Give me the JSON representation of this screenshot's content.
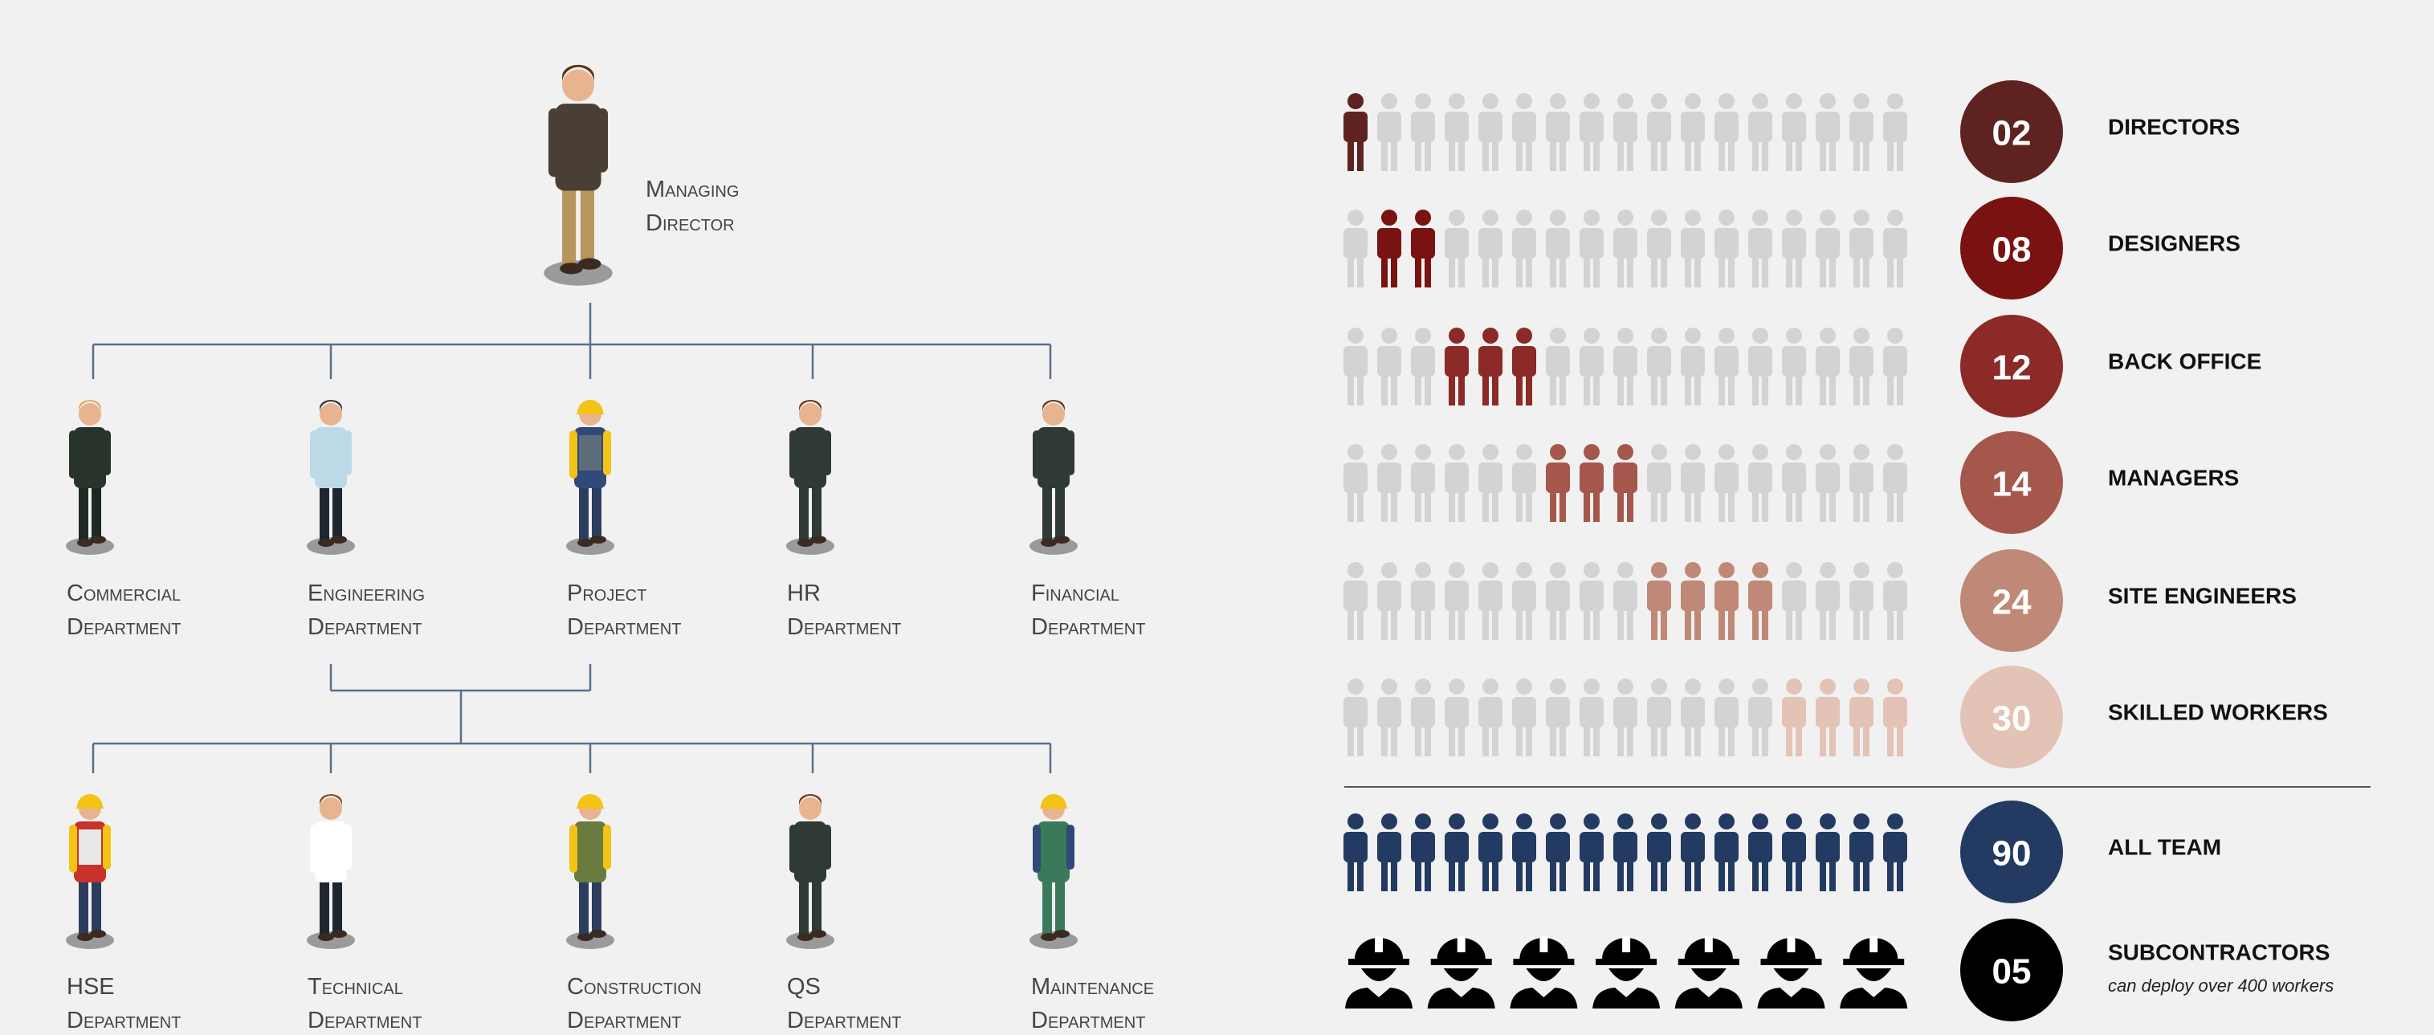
{
  "org_chart": {
    "top": {
      "label": [
        "Managing",
        "Director"
      ]
    },
    "departments": [
      {
        "label": [
          "Commercial",
          "Department"
        ]
      },
      {
        "label": [
          "Engineering",
          "Department"
        ]
      },
      {
        "label": [
          "Project",
          "Department"
        ]
      },
      {
        "label": [
          "HR",
          "Department"
        ]
      },
      {
        "label": [
          "Financial",
          "Department"
        ]
      }
    ],
    "sub_departments": [
      {
        "label": [
          "HSE",
          "Department"
        ]
      },
      {
        "label": [
          "Technical",
          "Department"
        ]
      },
      {
        "label": [
          "Construction",
          "Department"
        ]
      },
      {
        "label": [
          "QS",
          "Department"
        ]
      },
      {
        "label": [
          "Maintenance",
          "Department"
        ]
      }
    ]
  },
  "stats": {
    "rows": [
      {
        "number": "02",
        "label": "DIRECTORS",
        "color": "#5e2320"
      },
      {
        "number": "08",
        "label": "DESIGNERS",
        "color": "#7a1212"
      },
      {
        "number": "12",
        "label": "BACK OFFICE",
        "color": "#8b2a26"
      },
      {
        "number": "14",
        "label": "MANAGERS",
        "color": "#a5574b"
      },
      {
        "number": "24",
        "label": "SITE ENGINEERS",
        "color": "#c08876"
      },
      {
        "number": "30",
        "label": "SKILLED WORKERS",
        "color": "#e2c3b6"
      }
    ],
    "team": {
      "number": "90",
      "label": "ALL TEAM",
      "color": "#233a63"
    },
    "subcontractors": {
      "number": "05",
      "label": "SUBCONTRACTORS",
      "note": "can deploy over 400 workers",
      "color": "#000000"
    }
  }
}
